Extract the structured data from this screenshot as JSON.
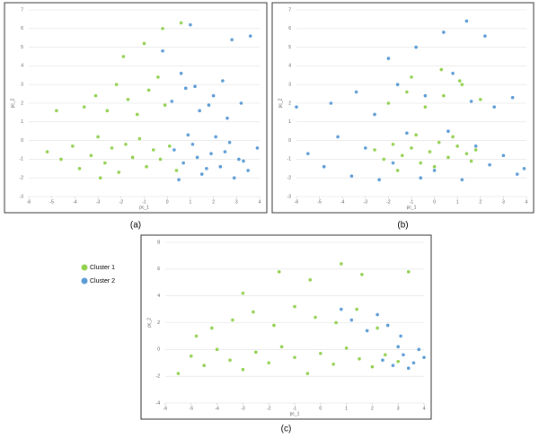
{
  "chart_data": [
    {
      "type": "scatter",
      "caption": "(a)",
      "xlabel": "pc_1",
      "ylabel": "pc_2",
      "xlim": [
        -6,
        4
      ],
      "ylim": [
        -3,
        7
      ],
      "xticks": [
        -6,
        -5,
        -4,
        -3,
        -2,
        -1,
        0,
        1,
        2,
        3,
        4
      ],
      "yticks": [
        -3,
        -2,
        -1,
        0,
        1,
        2,
        3,
        4,
        5,
        6,
        7
      ],
      "grid": true,
      "series": [
        {
          "color": "#92d050",
          "x": [
            -5.2,
            -4.6,
            -4.1,
            -3.8,
            -3.3,
            -3.0,
            -2.7,
            -2.4,
            -2.1,
            -1.8,
            -1.5,
            -1.2,
            -0.9,
            -0.6,
            -0.3,
            0.1,
            0.4,
            -3.6,
            -3.1,
            -2.6,
            -2.2,
            -1.7,
            -1.3,
            -0.8,
            -0.4,
            -0.1,
            -1.9,
            -1.0,
            -0.2,
            0.6,
            -4.8,
            -2.9
          ],
          "values": [
            -0.6,
            -1.0,
            -0.3,
            -1.5,
            -0.8,
            0.2,
            -1.2,
            -0.4,
            -1.7,
            -0.2,
            -0.9,
            0.1,
            -1.4,
            -0.5,
            -1.0,
            -0.3,
            -1.6,
            1.8,
            2.4,
            1.6,
            3.0,
            2.2,
            1.4,
            2.7,
            3.4,
            1.9,
            4.5,
            5.2,
            6.0,
            6.3,
            1.6,
            -2.0
          ]
        },
        {
          "color": "#5b9bd5",
          "x": [
            0.3,
            0.7,
            1.1,
            1.5,
            1.9,
            2.3,
            2.7,
            3.1,
            3.5,
            3.9,
            0.5,
            0.9,
            1.3,
            1.7,
            2.1,
            2.5,
            2.9,
            3.3,
            0.2,
            0.8,
            1.4,
            2.0,
            2.6,
            3.2,
            0.6,
            1.2,
            1.8,
            2.4,
            -0.2,
            3.6,
            1.0,
            2.8
          ],
          "values": [
            -0.5,
            -1.2,
            -0.2,
            -1.8,
            -0.7,
            -1.4,
            -0.1,
            -1.0,
            -1.6,
            -0.4,
            -2.1,
            0.3,
            -0.9,
            -1.5,
            0.2,
            -0.6,
            -2.0,
            -1.1,
            2.1,
            2.8,
            1.6,
            2.4,
            1.2,
            2.0,
            3.6,
            2.9,
            1.9,
            3.2,
            4.8,
            5.6,
            6.2,
            5.4
          ]
        }
      ]
    },
    {
      "type": "scatter",
      "caption": "(b)",
      "xlabel": "pc_1",
      "ylabel": "pc_2",
      "xlim": [
        -6,
        4
      ],
      "ylim": [
        -3,
        7
      ],
      "xticks": [
        -6,
        -5,
        -4,
        -3,
        -2,
        -1,
        0,
        1,
        2,
        3,
        4
      ],
      "yticks": [
        -3,
        -2,
        -1,
        0,
        1,
        2,
        3,
        4,
        5,
        6,
        7
      ],
      "grid": true,
      "series": [
        {
          "color": "#5b9bd5",
          "x": [
            -5.5,
            -4.8,
            -4.2,
            -3.6,
            -3.0,
            -2.4,
            -1.8,
            -1.2,
            -0.6,
            0.0,
            0.6,
            1.2,
            1.8,
            2.4,
            3.0,
            3.6,
            -4.5,
            -3.4,
            -2.6,
            -1.6,
            -0.4,
            0.8,
            1.6,
            2.6,
            3.4,
            -2.0,
            -0.8,
            0.4,
            1.4,
            2.2,
            -6.0,
            3.9
          ],
          "values": [
            -0.7,
            -1.4,
            0.2,
            -1.9,
            -0.4,
            -2.1,
            -1.2,
            0.4,
            -2.0,
            -1.6,
            0.5,
            -2.1,
            -0.3,
            -1.3,
            -0.8,
            -1.8,
            2.0,
            2.6,
            1.4,
            3.0,
            2.4,
            3.6,
            2.1,
            1.8,
            2.3,
            4.4,
            5.0,
            5.8,
            6.4,
            5.6,
            1.8,
            -1.5
          ]
        },
        {
          "color": "#92d050",
          "x": [
            -2.6,
            -2.2,
            -1.8,
            -1.4,
            -1.0,
            -0.6,
            -0.2,
            0.2,
            0.6,
            1.0,
            1.4,
            1.8,
            -2.0,
            -1.2,
            -0.4,
            0.4,
            1.2,
            2.0,
            -1.6,
            -0.8,
            0.0,
            0.8,
            1.6,
            -1.0,
            0.3,
            1.1
          ],
          "values": [
            -0.5,
            -1.0,
            -0.2,
            -0.8,
            -0.4,
            -1.2,
            -0.6,
            -0.1,
            -0.9,
            -0.3,
            -0.7,
            -0.5,
            2.0,
            2.6,
            1.8,
            2.4,
            3.0,
            2.2,
            -1.6,
            0.3,
            -1.4,
            0.2,
            -1.1,
            3.4,
            3.8,
            3.2
          ]
        }
      ]
    },
    {
      "type": "scatter",
      "caption": "(c)",
      "xlabel": "pc_1",
      "ylabel": "pc_2",
      "xlim": [
        -6,
        4
      ],
      "ylim": [
        -4,
        8
      ],
      "xticks": [
        -6,
        -5,
        -4,
        -3,
        -2,
        -1,
        0,
        1,
        2,
        3,
        4
      ],
      "yticks": [
        -4,
        -2,
        0,
        2,
        4,
        6,
        8
      ],
      "grid": true,
      "series": [
        {
          "name": "Cluster 1",
          "color": "#92d050",
          "x": [
            -5.5,
            -5.0,
            -4.5,
            -4.0,
            -3.5,
            -3.0,
            -2.5,
            -2.0,
            -1.5,
            -1.0,
            -0.5,
            0.0,
            0.5,
            1.0,
            1.5,
            2.0,
            2.5,
            3.0,
            -4.2,
            -3.4,
            -2.6,
            -1.8,
            -1.0,
            -0.2,
            0.6,
            1.4,
            2.2,
            -3.0,
            -1.6,
            -0.4,
            0.8,
            1.6,
            3.4,
            -4.8
          ],
          "values": [
            -1.8,
            -0.5,
            -1.2,
            0.0,
            -0.8,
            -1.5,
            -0.2,
            -1.0,
            0.2,
            -0.6,
            -1.8,
            -0.3,
            -1.1,
            0.1,
            -0.7,
            -1.3,
            -0.4,
            -0.9,
            1.6,
            2.2,
            2.8,
            1.8,
            3.2,
            2.4,
            2.0,
            3.0,
            1.6,
            4.2,
            5.8,
            5.2,
            6.4,
            5.6,
            5.8,
            1.0
          ]
        },
        {
          "name": "Cluster 2",
          "color": "#5b9bd5",
          "x": [
            2.4,
            2.8,
            3.2,
            3.6,
            4.0,
            3.0,
            3.4,
            3.8,
            1.2,
            1.8,
            2.6,
            0.8,
            2.2,
            3.1
          ],
          "values": [
            -0.8,
            -1.2,
            -0.4,
            -1.0,
            -0.6,
            0.2,
            -1.4,
            0.0,
            2.2,
            1.4,
            1.8,
            3.0,
            2.6,
            1.0
          ]
        }
      ]
    }
  ]
}
